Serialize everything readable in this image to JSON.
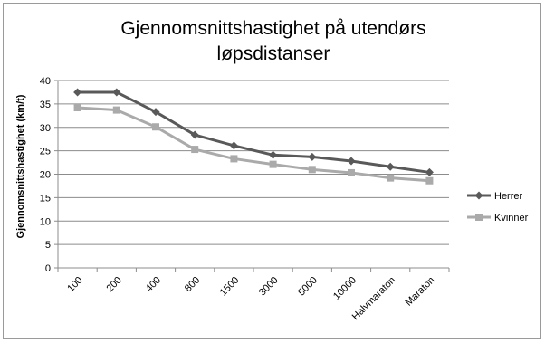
{
  "chart_data": {
    "type": "line",
    "title": "Gjennomsnittshastighet på utendørs løpsdistanser",
    "title_lines": [
      "Gjennomsnittshastighet på utendørs",
      "løpsdistanser"
    ],
    "xlabel": "",
    "ylabel": "Gjennomsnittshastighet  (km/t)",
    "categories": [
      "100",
      "200",
      "400",
      "800",
      "1500",
      "3000",
      "5000",
      "10000",
      "Halvmaraton",
      "Maraton"
    ],
    "ylim": [
      0,
      40
    ],
    "yticks": [
      0,
      5,
      10,
      15,
      20,
      25,
      30,
      35,
      40
    ],
    "grid": true,
    "legend_position": "right",
    "series": [
      {
        "name": "Herrer",
        "marker": "diamond",
        "color": "#595959",
        "values": [
          37.5,
          37.5,
          33.3,
          28.4,
          26.1,
          24.1,
          23.7,
          22.8,
          21.6,
          20.4
        ]
      },
      {
        "name": "Kvinner",
        "marker": "square",
        "color": "#aaaaaa",
        "values": [
          34.2,
          33.7,
          30.1,
          25.3,
          23.3,
          22.1,
          21.0,
          20.3,
          19.2,
          18.6
        ]
      }
    ]
  }
}
